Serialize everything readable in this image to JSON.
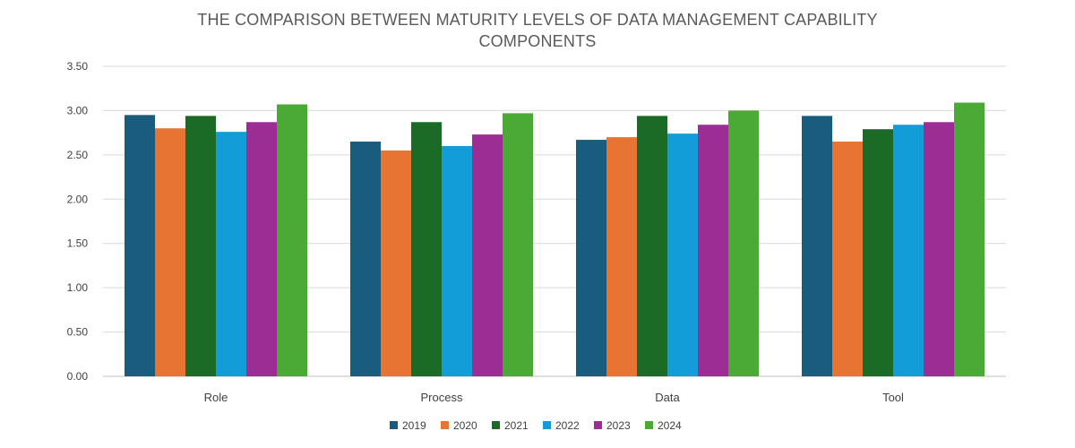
{
  "chart_data": {
    "type": "bar",
    "title": "THE COMPARISON BETWEEN MATURITY LEVELS OF DATA MANAGEMENT CAPABILITY COMPONENTS",
    "xlabel": "",
    "ylabel": "",
    "categories": [
      "Role",
      "Process",
      "Data",
      "Tool"
    ],
    "ylim": [
      0,
      3.5
    ],
    "yticks": [
      "0.00",
      "0.50",
      "1.00",
      "1.50",
      "2.00",
      "2.50",
      "3.00",
      "3.50"
    ],
    "ytick_values": [
      0,
      0.5,
      1.0,
      1.5,
      2.0,
      2.5,
      3.0,
      3.5
    ],
    "grid": true,
    "legend_position": "bottom",
    "series": [
      {
        "name": "2019",
        "color": "#1a5c7e",
        "values": [
          2.95,
          2.65,
          2.67,
          2.94
        ]
      },
      {
        "name": "2020",
        "color": "#e87433",
        "values": [
          2.8,
          2.55,
          2.7,
          2.65
        ]
      },
      {
        "name": "2021",
        "color": "#1b6b27",
        "values": [
          2.94,
          2.87,
          2.94,
          2.79
        ]
      },
      {
        "name": "2022",
        "color": "#129dd8",
        "values": [
          2.76,
          2.6,
          2.74,
          2.84
        ]
      },
      {
        "name": "2023",
        "color": "#9b2d94",
        "values": [
          2.87,
          2.73,
          2.84,
          2.87
        ]
      },
      {
        "name": "2024",
        "color": "#4aaa35",
        "values": [
          3.07,
          2.97,
          3.0,
          3.09
        ]
      }
    ]
  }
}
